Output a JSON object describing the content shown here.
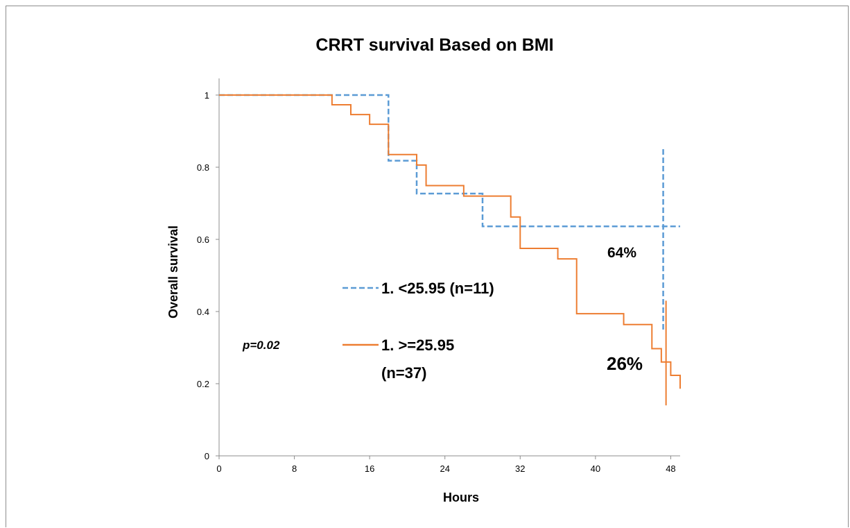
{
  "chart_data": {
    "type": "line",
    "title": "CRRT survival Based on BMI",
    "xlabel": "Hours",
    "ylabel": "Overall survival",
    "xlim": [
      0,
      49
    ],
    "ylim": [
      0,
      1
    ],
    "x_ticks": [
      "0",
      "8",
      "16",
      "24",
      "32",
      "40",
      "48"
    ],
    "y_ticks": [
      "0",
      "0.2",
      "0.4",
      "0.6",
      "0.8",
      "1"
    ],
    "grid": false,
    "series": [
      {
        "name": "1. <25.95 (n=11)",
        "color": "#5b9bd5",
        "style": "dashed",
        "x": [
          0,
          18,
          21,
          28,
          49
        ],
        "y": [
          1.0,
          0.818,
          0.727,
          0.636,
          0.636
        ],
        "censor_x": 47.2,
        "censor_y_range": [
          0.35,
          0.85
        ]
      },
      {
        "name": "1. >=25.95",
        "name_line2": "(n=37)",
        "color": "#ed7d31",
        "style": "solid",
        "x": [
          0,
          12,
          14,
          16,
          18,
          21,
          22,
          26,
          31,
          32,
          36,
          38,
          43,
          46,
          47,
          48,
          49
        ],
        "y": [
          1.0,
          0.973,
          0.946,
          0.919,
          0.835,
          0.806,
          0.749,
          0.72,
          0.662,
          0.575,
          0.546,
          0.394,
          0.364,
          0.297,
          0.26,
          0.223,
          0.186
        ],
        "censor_x": 47.5,
        "censor_y_range": [
          0.14,
          0.43
        ]
      }
    ],
    "annotations": {
      "p_value": "p=0.02",
      "pct_group1": "64%",
      "pct_group2": "26%"
    }
  }
}
